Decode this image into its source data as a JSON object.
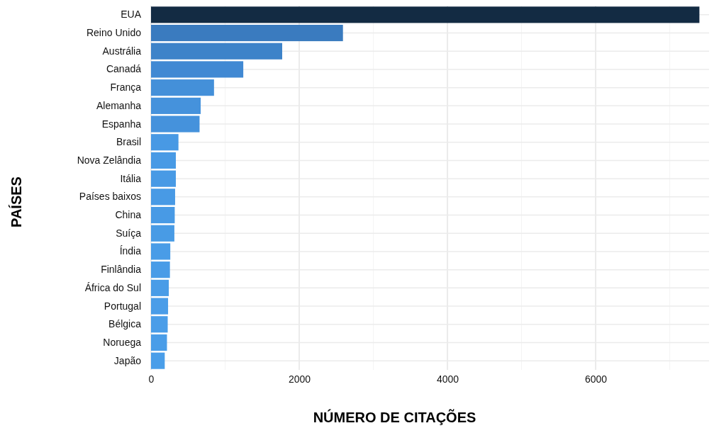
{
  "chart_data": {
    "type": "bar",
    "orientation": "horizontal",
    "xlabel": "NÚMERO DE CITAÇÕES",
    "ylabel": "PAÍSES",
    "categories": [
      "EUA",
      "Reino Unido",
      "Austrália",
      "Canadá",
      "França",
      "Alemanha",
      "Espanha",
      "Brasil",
      "Nova Zelândia",
      "Itália",
      "Países baixos",
      "China",
      "Suíça",
      "Índia",
      "Finlândia",
      "África do Sul",
      "Portugal",
      "Bélgica",
      "Noruega",
      "Japão"
    ],
    "values": [
      7400,
      2590,
      1770,
      1245,
      850,
      670,
      655,
      370,
      335,
      335,
      325,
      320,
      315,
      260,
      255,
      240,
      230,
      225,
      215,
      185
    ],
    "colors": [
      "#132b43",
      "#3a7bbf",
      "#3d83c9",
      "#4189d3",
      "#4490d9",
      "#4592dc",
      "#4592dc",
      "#4899e4",
      "#489ae5",
      "#489ae5",
      "#489ae5",
      "#489ae5",
      "#489be5",
      "#499ce7",
      "#499ce7",
      "#499ce7",
      "#4a9de8",
      "#4a9de8",
      "#4a9de8",
      "#4a9ee9"
    ],
    "xlim": [
      0,
      7530
    ],
    "xticks": [
      0,
      2000,
      4000,
      6000
    ],
    "grid": true
  }
}
